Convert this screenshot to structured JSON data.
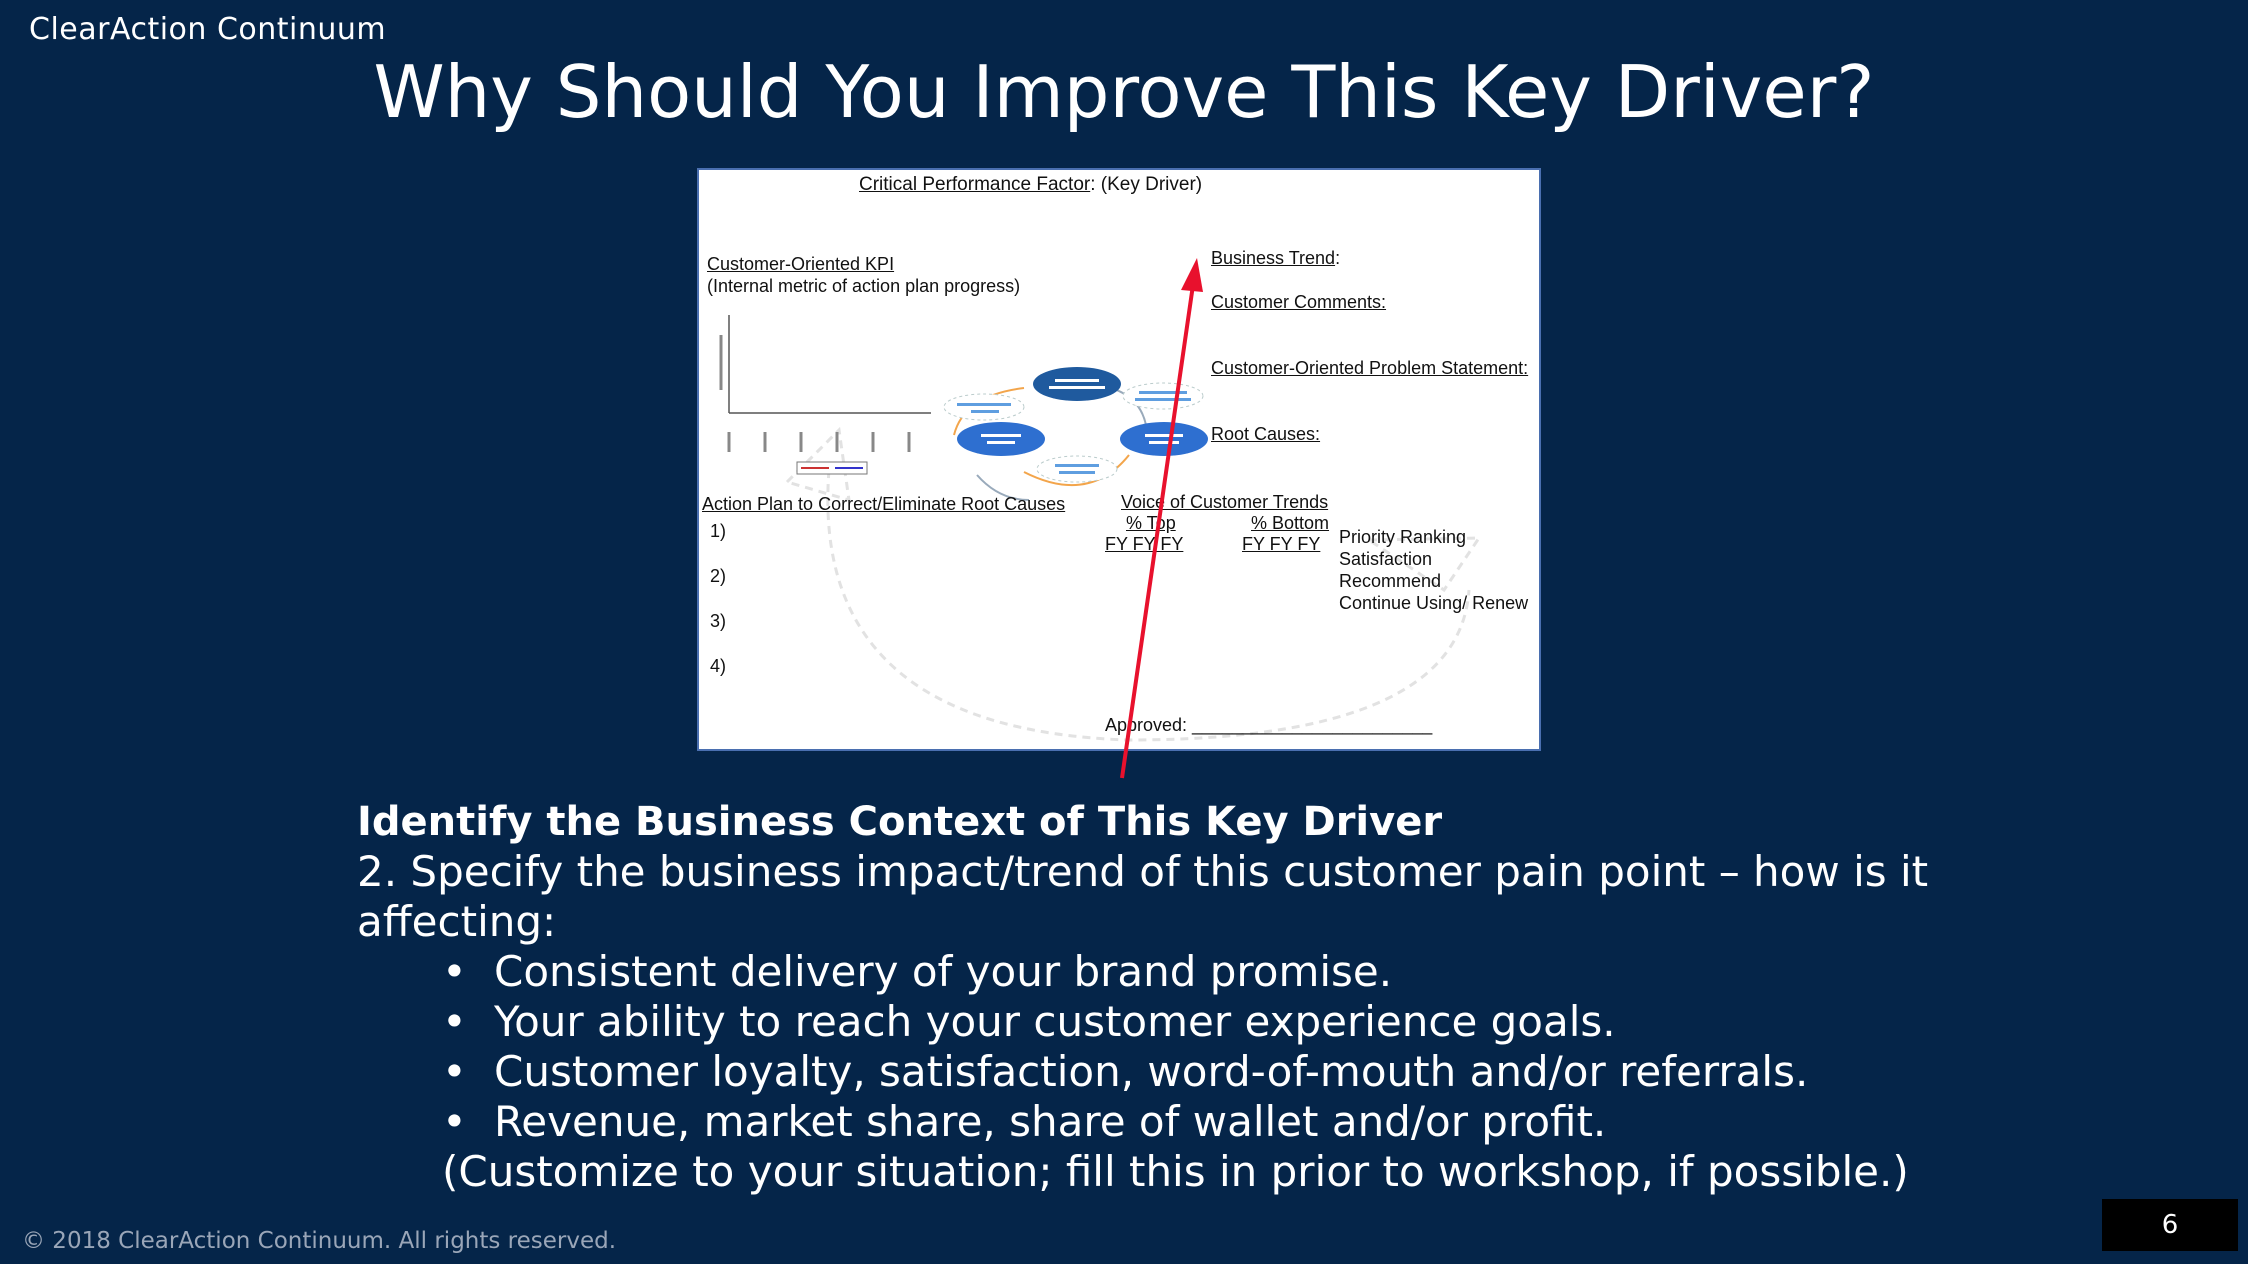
{
  "header": {
    "brand": "ClearAction Continuum",
    "title": "Why Should You Improve This Key Driver?"
  },
  "form": {
    "cpf_label": "Critical Performance Factor",
    "cpf_rest": ":  (Key Driver)",
    "kpi_label": "Customer-Oriented KPI",
    "kpi_sub": "(Internal metric of action plan progress)",
    "business_trend": "Business Trend",
    "colon": ":",
    "customer_comments": "Customer Comments:",
    "problem_statement": "Customer-Oriented Problem Statement:",
    "root_causes": "Root Causes:",
    "action_plan": "Action Plan to Correct/Eliminate Root Causes",
    "action_items": [
      "1)",
      "2)",
      "3)",
      "4)"
    ],
    "voc_trends": "Voice of Customer Trends",
    "pct_top": "% Top",
    "pct_bottom": "% Bottom",
    "fy_top": "FY  FY  FY",
    "fy_bottom": "FY  FY  FY",
    "metrics": [
      "Priority Ranking",
      "Satisfaction",
      "Recommend",
      "Continue Using/ Renew"
    ],
    "approved": "Approved: ________________________"
  },
  "content": {
    "heading": "Identify the Business Context of This Key Driver",
    "intro": "2. Specify the business impact/trend of this customer pain point – how is it affecting:",
    "bullet_char": "•",
    "bullets": [
      "Consistent delivery of your brand promise.",
      "Your ability to reach your customer experience goals.",
      "Customer loyalty, satisfaction, word-of-mouth and/or referrals.",
      "Revenue, market share, share of wallet and/or profit."
    ],
    "note": "(Customize to your situation; fill this in prior to workshop, if possible.)"
  },
  "footer": {
    "copyright": "© 2018 ClearAction Continuum. All rights reserved.",
    "page_number": "6"
  },
  "colors": {
    "background": "#052549",
    "arrow": "#e8112d",
    "node_dark": "#1f5a9e",
    "node_blue": "#2e6fd0"
  }
}
